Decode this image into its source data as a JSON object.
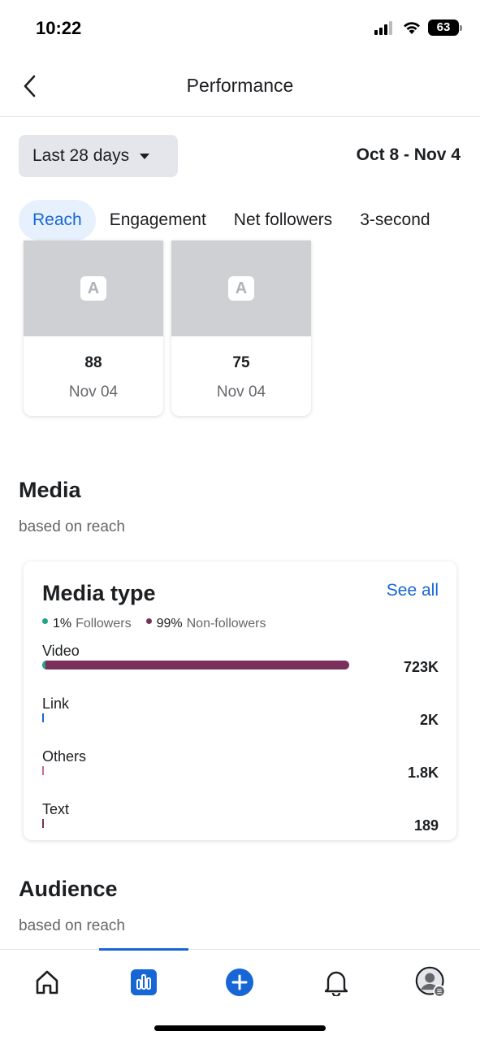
{
  "status_bar": {
    "time": "10:22",
    "battery": "63"
  },
  "header": {
    "title": "Performance"
  },
  "filter": {
    "range_label": "Last 28 days",
    "date_range": "Oct 8 - Nov 4"
  },
  "tabs": [
    {
      "label": "Reach",
      "active": true
    },
    {
      "label": "Engagement",
      "active": false
    },
    {
      "label": "Net followers",
      "active": false
    },
    {
      "label": "3-second",
      "active": false
    }
  ],
  "posts": [
    {
      "avatar_letter": "A",
      "value": "88",
      "date": "Nov 04"
    },
    {
      "avatar_letter": "A",
      "value": "75",
      "date": "Nov 04"
    }
  ],
  "media_section": {
    "title": "Media",
    "subtitle": "based on reach"
  },
  "media_card": {
    "title": "Media type",
    "see_all": "See all",
    "legend": [
      {
        "pct": "1%",
        "name": "Followers",
        "color": "#1fa38a"
      },
      {
        "pct": "99%",
        "name": "Non-followers",
        "color": "#7a2f5c"
      }
    ],
    "rows": [
      {
        "label": "Video",
        "value": "723K",
        "share": 1.0,
        "follower_share": 0.01
      },
      {
        "label": "Link",
        "value": "2K",
        "share": 0.0028,
        "follower_share": 1.0
      },
      {
        "label": "Others",
        "value": "1.8K",
        "share": 0.0025,
        "follower_share": 0.0
      },
      {
        "label": "Text",
        "value": "189",
        "share": 0.0003,
        "follower_share": 0.0
      }
    ]
  },
  "audience_section": {
    "title": "Audience",
    "subtitle": "based on reach"
  },
  "nav": [
    {
      "icon": "home-icon",
      "active": false
    },
    {
      "icon": "insights-icon",
      "active": true
    },
    {
      "icon": "create-icon",
      "active": false
    },
    {
      "icon": "bell-icon",
      "active": false
    },
    {
      "icon": "profile-icon",
      "active": false
    }
  ],
  "colors": {
    "accent": "#1766d6",
    "followers": "#1fa38a",
    "non_followers": "#7a2f5c"
  }
}
